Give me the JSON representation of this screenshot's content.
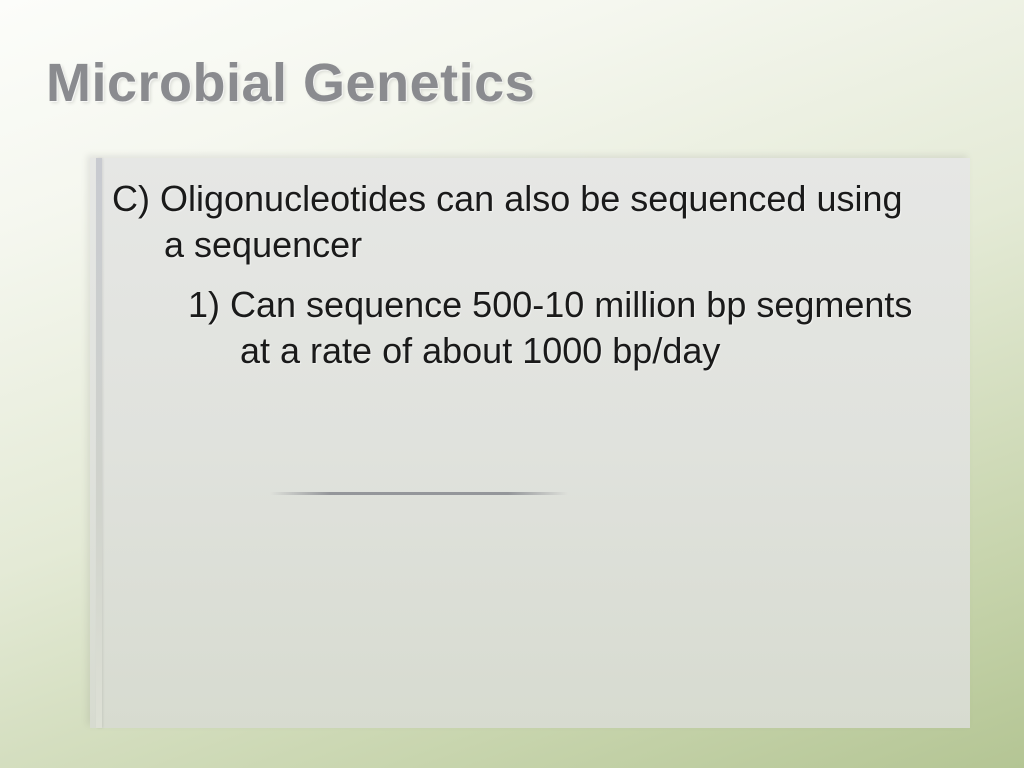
{
  "slide": {
    "title": "Microbial Genetics",
    "title_color": "#8a8b8f",
    "title_fontsize": 54,
    "body_fontsize": 36,
    "body_color": "#1a1a1a",
    "background_gradient": [
      "#fcfdfa",
      "#f5f7ef",
      "#e4ead6",
      "#c8d5ae",
      "#b4c594"
    ],
    "panel_gradient": [
      "#e6e7e5",
      "#e0e2dd",
      "#d7dbd0"
    ],
    "accent_bar_color": "#c8cad0",
    "bullets": {
      "c": "C) Oligonucleotides can also be sequenced using a sequencer",
      "c1": "1) Can sequence 500-10 million bp segments at a rate of about 1000 bp/day"
    },
    "divider_color": "rgba(130,132,138,0.8)"
  }
}
